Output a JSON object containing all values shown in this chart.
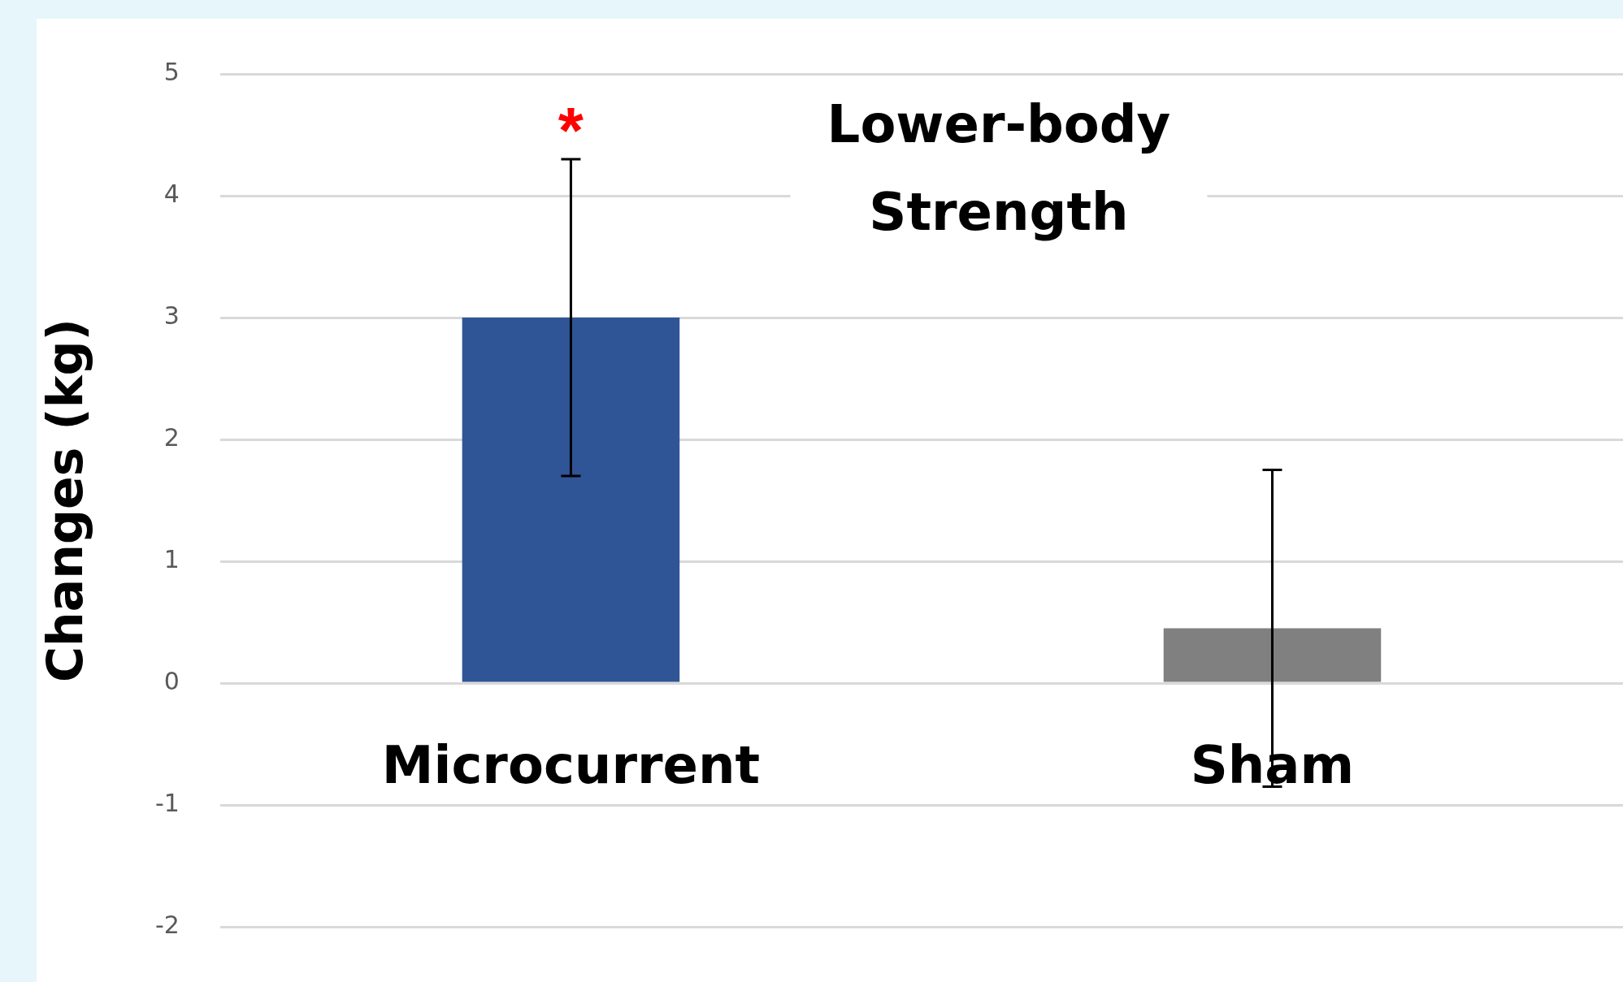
{
  "chart_data": {
    "type": "bar",
    "title": "Lower-body Strength",
    "ylabel": "Changes (kg)",
    "categories": [
      "Microcurrent",
      "Sham"
    ],
    "values": [
      3.0,
      0.45
    ],
    "colors": [
      "#2f5597",
      "#808080"
    ],
    "errors": [
      1.3,
      1.3
    ],
    "ylim": [
      -2,
      5
    ],
    "yticks": [
      -2,
      -1,
      0,
      1,
      2,
      3,
      4,
      5
    ],
    "grid": "y",
    "annotations": [
      "*"
    ]
  }
}
